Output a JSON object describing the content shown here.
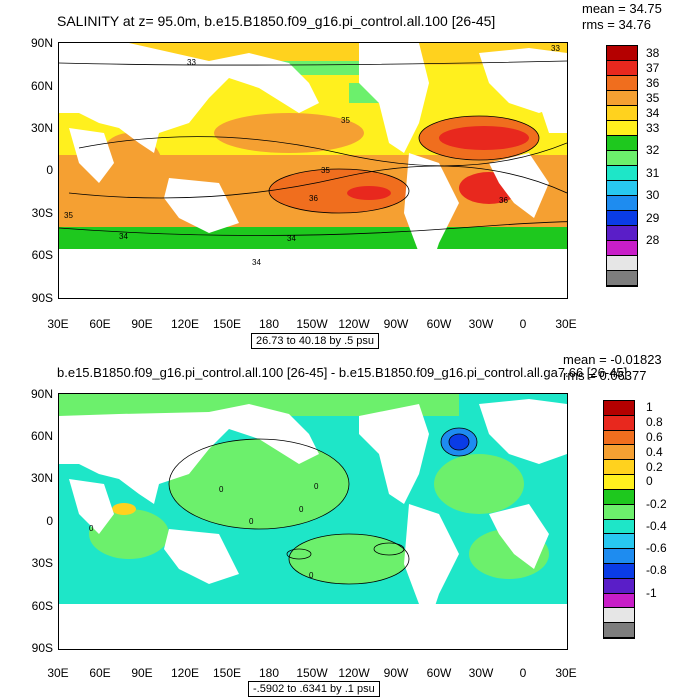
{
  "top": {
    "title": "SALINITY at z=  95.0m, b.e15.B1850.f09_g16.pi_control.all.100 [26-45]",
    "mean": "mean = 34.75",
    "rms": "rms = 34.76",
    "range_note": "26.73 to 40.18 by .5 psu",
    "colorbar": {
      "labels": [
        "38",
        "37",
        "36",
        "35",
        "34",
        "33",
        "32",
        "31",
        "30",
        "29",
        "28"
      ],
      "colors": [
        "#b40000",
        "#e8281e",
        "#f06e1e",
        "#f5a032",
        "#ffd21e",
        "#fff01e",
        "#1ec81e",
        "#6cf06c",
        "#1ee6c8",
        "#28c8f0",
        "#1e8cf0",
        "#0a3ce6",
        "#5a1ec8",
        "#c81ec8",
        "#e6e6e6",
        "#7d7d7d"
      ]
    },
    "contours": [
      "33",
      "35",
      "36",
      "35",
      "36",
      "34",
      "34",
      "34",
      "33",
      "35"
    ]
  },
  "bottom": {
    "title": "b.e15.B1850.f09_g16.pi_control.all.100 [26-45] - b.e15.B1850.f09_g16.pi_control.all.ga7.66 [26-45]",
    "mean": "mean = -0.01823",
    "rms": "rms = 0.06377",
    "range_note": "-.5902 to .6341 by .1 psu",
    "colorbar": {
      "labels": [
        "1",
        "0.8",
        "0.6",
        "0.4",
        "0.2",
        "0",
        "-0.2",
        "-0.4",
        "-0.6",
        "-0.8",
        "-1"
      ],
      "colors": [
        "#b40000",
        "#e8281e",
        "#f06e1e",
        "#f5a032",
        "#ffd21e",
        "#fff01e",
        "#1ec81e",
        "#6cf06c",
        "#1ee6c8",
        "#28c8f0",
        "#1e8cf0",
        "#0a3ce6",
        "#5a1ec8",
        "#c81ec8",
        "#e6e6e6",
        "#7d7d7d"
      ]
    },
    "contours": [
      "0",
      "0",
      "0",
      "0",
      "0",
      "0"
    ]
  },
  "axes": {
    "lat_labels": [
      "90N",
      "60N",
      "30N",
      "0",
      "30S",
      "60S",
      "90S"
    ],
    "lon_labels": [
      "30E",
      "60E",
      "90E",
      "120E",
      "150E",
      "180",
      "150W",
      "120W",
      "90W",
      "60W",
      "30W",
      "0",
      "30E"
    ]
  }
}
